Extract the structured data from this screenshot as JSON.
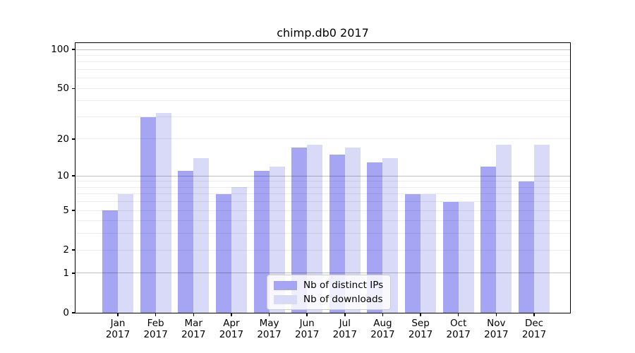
{
  "chart_data": {
    "type": "bar",
    "title": "chimp.db0 2017",
    "categories": [
      "Jan",
      "Feb",
      "Mar",
      "Apr",
      "May",
      "Jun",
      "Jul",
      "Aug",
      "Sep",
      "Oct",
      "Nov",
      "Dec"
    ],
    "category_year": "2017",
    "series": [
      {
        "name": "Nb of distinct IPs",
        "color": "#a5a5f4",
        "values": [
          5,
          30,
          11,
          7,
          11,
          17,
          15,
          13,
          7,
          6,
          12,
          9
        ]
      },
      {
        "name": "Nb of downloads",
        "color": "#d9d9f8",
        "values": [
          7,
          32,
          14,
          8,
          12,
          18,
          17,
          14,
          7,
          6,
          18,
          18
        ]
      }
    ],
    "xlabel": "",
    "ylabel": "",
    "yscale": "log10(value+1)",
    "ylim": [
      0,
      112
    ],
    "yticks": [
      0,
      1,
      2,
      5,
      10,
      20,
      50,
      100
    ],
    "major_gridlines": [
      1,
      10,
      100
    ],
    "minor_gridlines": [
      2,
      3,
      4,
      5,
      6,
      7,
      8,
      9,
      20,
      30,
      40,
      50,
      60,
      70,
      80,
      90
    ],
    "grid": "on, drawn over bars",
    "legend_position": "lower center inside plot"
  }
}
